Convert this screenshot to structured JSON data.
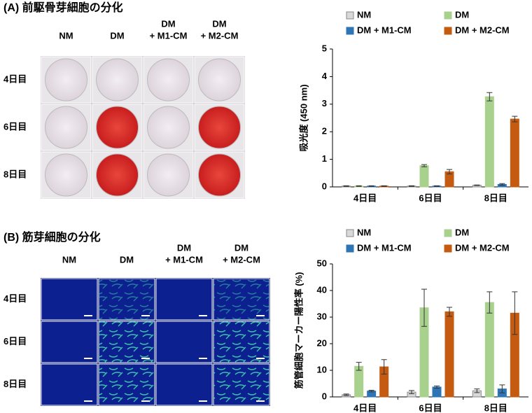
{
  "panels": [
    {
      "title": "(A) 前駆骨芽細胞の分化",
      "columns": [
        [
          "NM"
        ],
        [
          "DM"
        ],
        [
          "DM",
          "+ M1-CM"
        ],
        [
          "DM",
          "+ M2-CM"
        ]
      ],
      "rows": [
        "4日目",
        "6日目",
        "8日目"
      ]
    },
    {
      "title": "(B) 筋芽細胞の分化",
      "columns": [
        [
          "NM"
        ],
        [
          "DM"
        ],
        [
          "DM",
          "+ M1-CM"
        ],
        [
          "DM",
          "+ M2-CM"
        ]
      ],
      "rows": [
        "4日目",
        "6日目",
        "8日目"
      ]
    }
  ],
  "chart_data": [
    {
      "type": "bar",
      "ylabel": "吸光度 (450 nm)",
      "categories": [
        "4日目",
        "6日目",
        "8日目"
      ],
      "ylim": [
        0,
        5
      ],
      "yticks": [
        0,
        1,
        2,
        3,
        4,
        5
      ],
      "legend": "top",
      "series": [
        {
          "name": "NM",
          "color": "#d9d9d9",
          "values": [
            0.03,
            0.03,
            0.06
          ],
          "errors": [
            0.01,
            0.01,
            0.01
          ]
        },
        {
          "name": "DM",
          "color": "#a9d18e",
          "values": [
            0.03,
            0.77,
            3.27
          ],
          "errors": [
            0.01,
            0.04,
            0.15
          ]
        },
        {
          "name": "DM + M1-CM",
          "color": "#2e75b6",
          "values": [
            0.03,
            0.03,
            0.09
          ],
          "errors": [
            0.01,
            0.01,
            0.03
          ]
        },
        {
          "name": "DM + M2-CM",
          "color": "#c55a11",
          "values": [
            0.03,
            0.55,
            2.46
          ],
          "errors": [
            0.01,
            0.08,
            0.1
          ]
        }
      ]
    },
    {
      "type": "bar",
      "ylabel": "筋管細胞マーカー陽性率 (%)",
      "categories": [
        "4日目",
        "6日目",
        "8日目"
      ],
      "ylim": [
        0,
        50
      ],
      "yticks": [
        0,
        10,
        20,
        30,
        40,
        50
      ],
      "legend": "top",
      "series": [
        {
          "name": "NM",
          "color": "#d9d9d9",
          "values": [
            0.8,
            1.8,
            2.3
          ],
          "errors": [
            0.3,
            0.6,
            0.7
          ]
        },
        {
          "name": "DM",
          "color": "#a9d18e",
          "values": [
            11.5,
            33.5,
            35.5
          ],
          "errors": [
            1.5,
            7,
            4
          ]
        },
        {
          "name": "DM + M1-CM",
          "color": "#2e75b6",
          "values": [
            2.2,
            3.7,
            3.0
          ],
          "errors": [
            0.3,
            0.4,
            1.5
          ]
        },
        {
          "name": "DM + M2-CM",
          "color": "#c55a11",
          "values": [
            11.3,
            32,
            31.5
          ],
          "errors": [
            2.7,
            1.7,
            8
          ]
        }
      ]
    }
  ]
}
